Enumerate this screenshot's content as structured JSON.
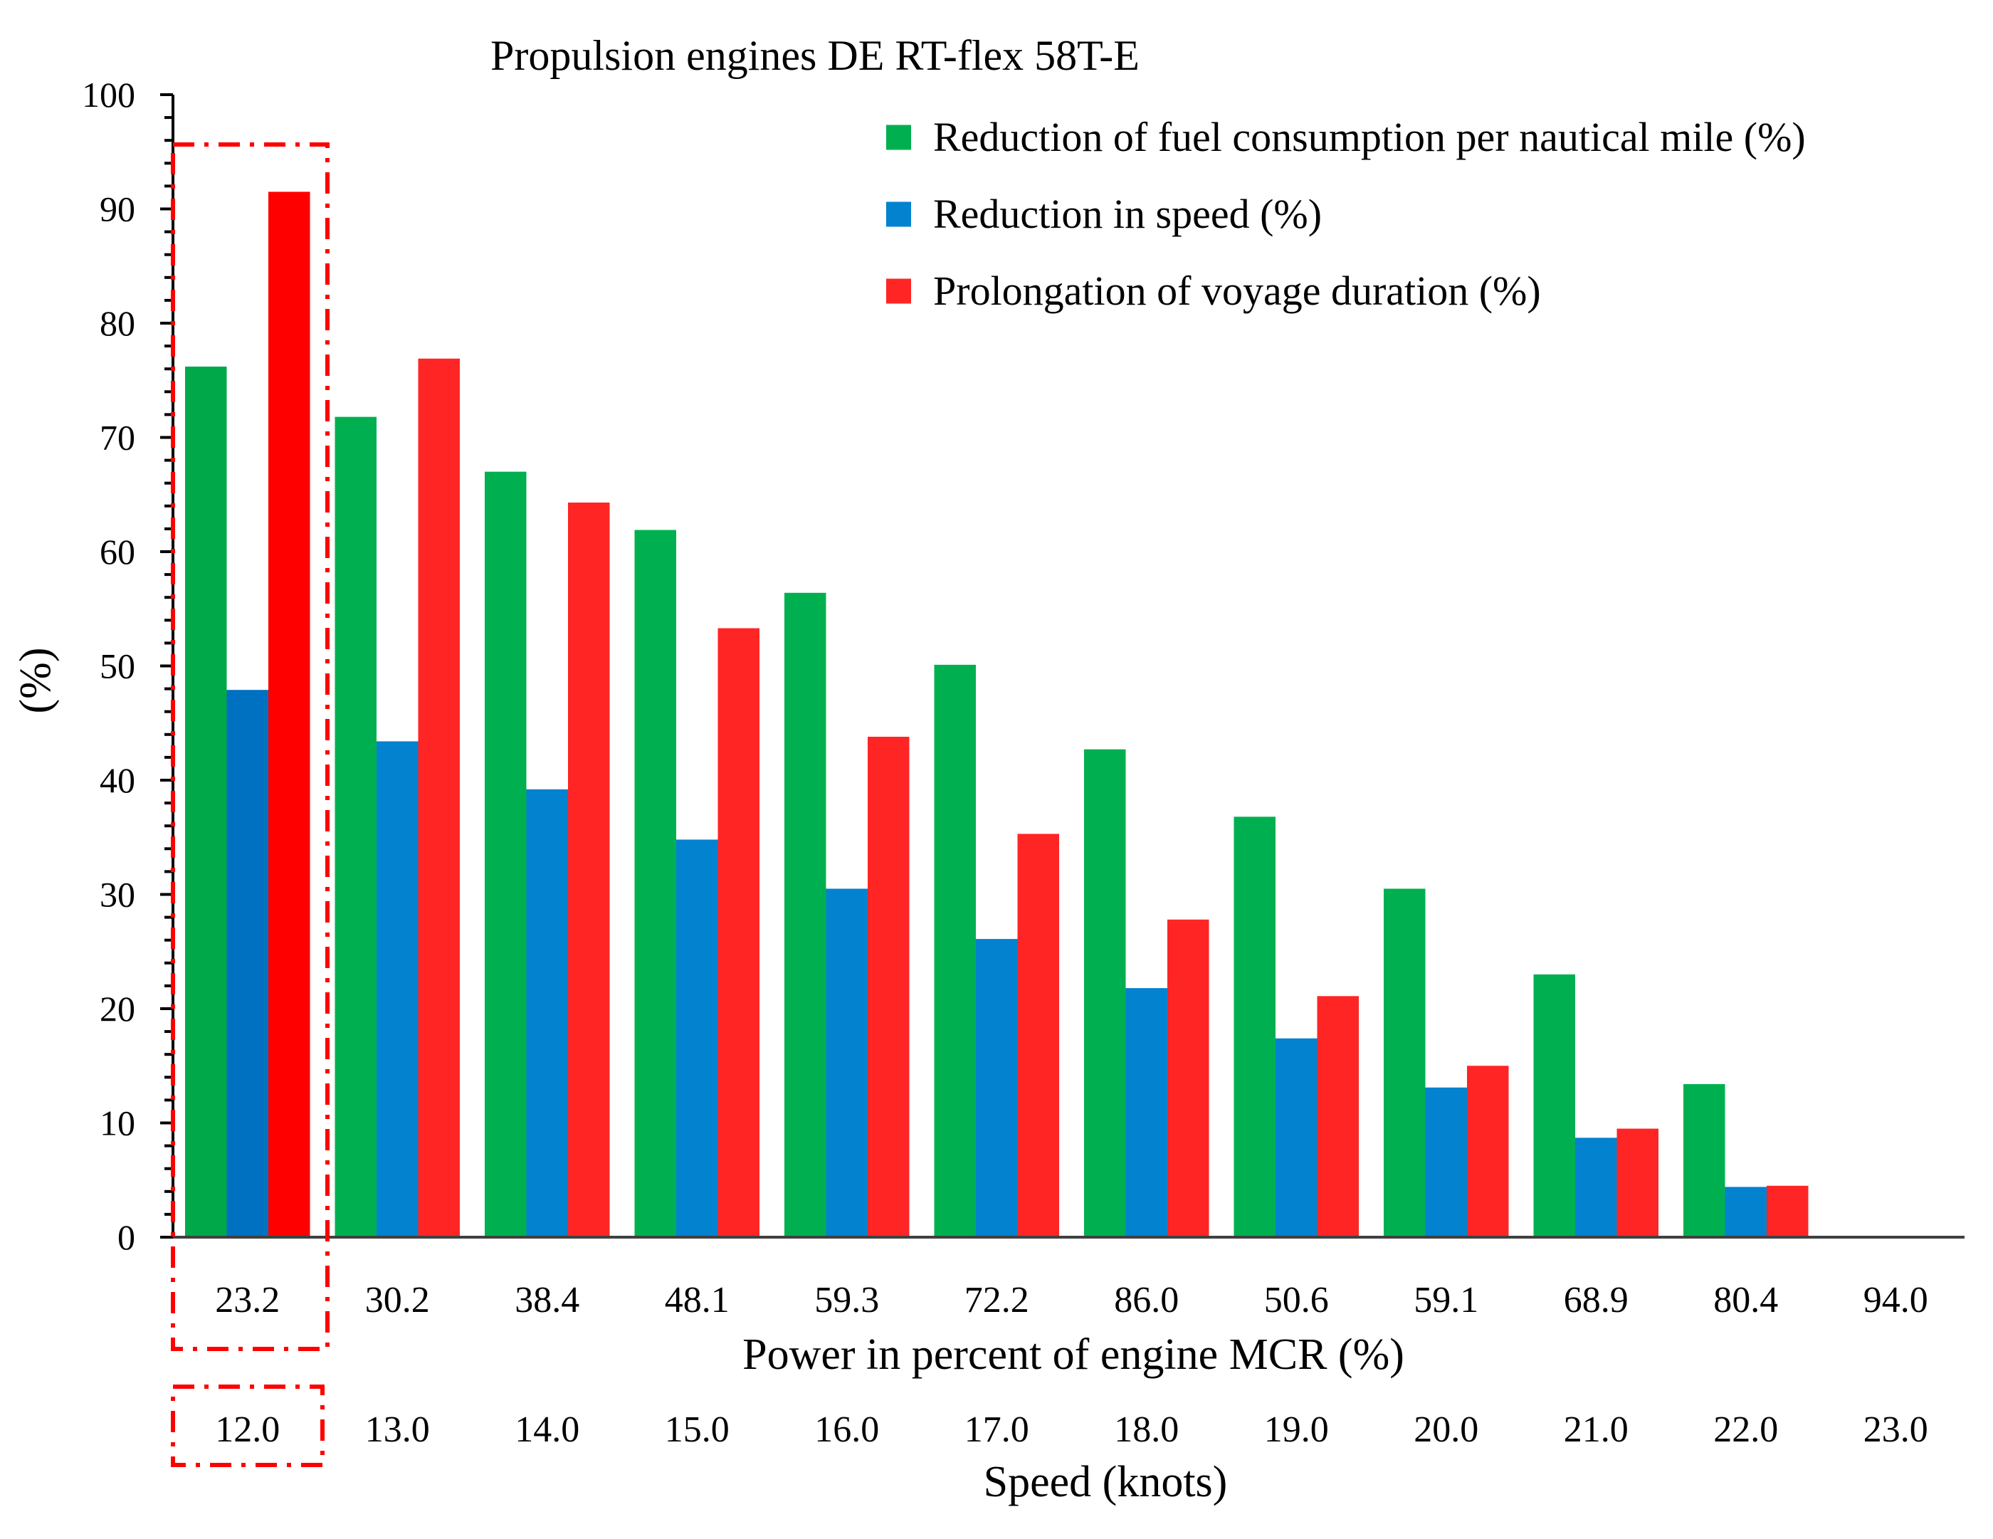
{
  "chart_data": {
    "type": "bar",
    "title": "Propulsion engines DE RT-flex 58T-E",
    "ylabel": "(%)",
    "ylim": [
      0,
      100
    ],
    "yticks": [
      0,
      10,
      20,
      30,
      40,
      50,
      60,
      70,
      80,
      90,
      100
    ],
    "grid": false,
    "legend_position": "top-right",
    "categories": [
      "23.2",
      "30.2",
      "38.4",
      "48.1",
      "59.3",
      "72.2",
      "86.0",
      "50.6",
      "59.1",
      "68.9",
      "80.4",
      "94.0"
    ],
    "xlabel": "Power in percent of engine MCR (%)",
    "secondary_categories": [
      "12.0",
      "13.0",
      "14.0",
      "15.0",
      "16.0",
      "17.0",
      "18.0",
      "19.0",
      "20.0",
      "21.0",
      "22.0",
      "23.0"
    ],
    "secondary_xlabel": "Speed (knots)",
    "highlighted_category_index": 0,
    "series": [
      {
        "name": "Reduction of fuel consumption per nautical mile (%)",
        "color": "#00b050",
        "highlight_color": "#00a84a",
        "values": [
          76.2,
          71.8,
          67.0,
          61.9,
          56.4,
          50.1,
          42.7,
          36.8,
          30.5,
          23.0,
          13.4,
          0
        ]
      },
      {
        "name": "Reduction in speed (%)",
        "color": "#0382d0",
        "highlight_color": "#0070c0",
        "values": [
          47.9,
          43.4,
          39.2,
          34.8,
          30.5,
          26.1,
          21.8,
          17.4,
          13.1,
          8.7,
          4.4,
          0
        ]
      },
      {
        "name": "Prolongation of voyage duration (%)",
        "color": "#ff2525",
        "highlight_color": "#ff0000",
        "values": [
          91.5,
          76.9,
          64.3,
          53.3,
          43.8,
          35.3,
          27.8,
          21.1,
          15.0,
          9.5,
          4.5,
          0
        ]
      }
    ],
    "highlight_box_color": "#ff0000"
  }
}
